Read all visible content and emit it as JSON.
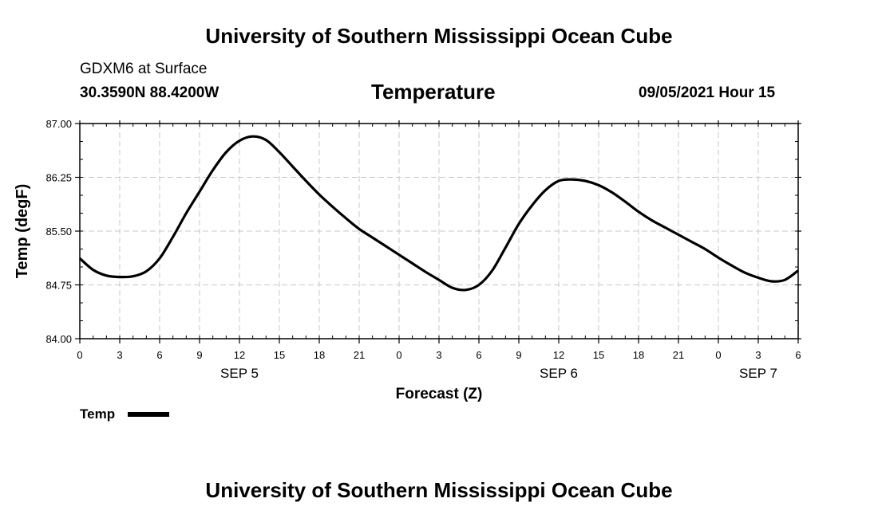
{
  "header": {
    "title_top": "University of Southern Mississippi Ocean Cube",
    "station": "GDXM6 at Surface",
    "coords": "30.3590N  88.4200W",
    "chart_title": "Temperature",
    "datetime": "09/05/2021 Hour 15"
  },
  "footer": {
    "title_bottom": "University of Southern Mississippi Ocean Cube"
  },
  "chart_data": {
    "type": "line",
    "title": "Temperature",
    "xlabel": "Forecast (Z)",
    "ylabel": "Temp (degF)",
    "ylim": [
      84.0,
      87.0
    ],
    "xlim": [
      0,
      54
    ],
    "grid": true,
    "y_ticks": [
      "84.00",
      "84.75",
      "85.50",
      "86.25",
      "87.00"
    ],
    "x_ticks": [
      "0",
      "3",
      "6",
      "9",
      "12",
      "15",
      "18",
      "21",
      "0",
      "3",
      "6",
      "9",
      "12",
      "15",
      "18",
      "21",
      "0",
      "3",
      "6"
    ],
    "date_labels": [
      {
        "label": "SEP 5",
        "x": 12
      },
      {
        "label": "SEP 6",
        "x": 36
      },
      {
        "label": "SEP 7",
        "x": 51
      }
    ],
    "legend": {
      "position": "bottom-left",
      "entries": [
        "Temp"
      ]
    },
    "series": [
      {
        "name": "Temp",
        "color": "#000000",
        "x": [
          0,
          1,
          2,
          3,
          4,
          5,
          6,
          7,
          8,
          9,
          10,
          11,
          12,
          13,
          14,
          15,
          16,
          17,
          18,
          19,
          20,
          21,
          22,
          23,
          24,
          25,
          26,
          27,
          28,
          29,
          30,
          31,
          32,
          33,
          34,
          35,
          36,
          37,
          38,
          39,
          40,
          41,
          42,
          43,
          44,
          45,
          46,
          47,
          48,
          49,
          50,
          51,
          52,
          53,
          54
        ],
        "values": [
          85.12,
          84.96,
          84.88,
          84.86,
          84.87,
          84.94,
          85.12,
          85.42,
          85.75,
          86.05,
          86.35,
          86.6,
          86.76,
          86.82,
          86.77,
          86.6,
          86.4,
          86.2,
          86.01,
          85.84,
          85.68,
          85.53,
          85.41,
          85.29,
          85.17,
          85.05,
          84.93,
          84.82,
          84.71,
          84.68,
          84.75,
          84.95,
          85.27,
          85.6,
          85.86,
          86.07,
          86.2,
          86.22,
          86.2,
          86.14,
          86.04,
          85.91,
          85.77,
          85.65,
          85.55,
          85.45,
          85.35,
          85.25,
          85.13,
          85.02,
          84.92,
          84.85,
          84.8,
          84.82,
          84.95
        ]
      }
    ]
  }
}
